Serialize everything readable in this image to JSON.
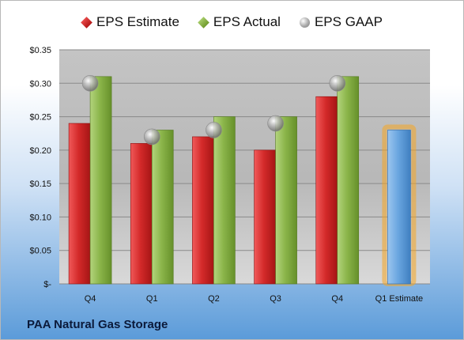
{
  "company_name": "PAA Natural Gas Storage",
  "legend": [
    {
      "key": "estimate",
      "label": "EPS Estimate"
    },
    {
      "key": "actual",
      "label": "EPS Actual"
    },
    {
      "key": "gaap",
      "label": "EPS GAAP"
    }
  ],
  "colors": {
    "estimate": "#d42a2a",
    "actual": "#8bb54a",
    "gaap": "#a9a9a9",
    "forecast": "#6aa6e0",
    "forecast_glow": "#f5a623",
    "plot_background": "#c0c0c0"
  },
  "chart_data": {
    "type": "bar",
    "categories": [
      "Q4",
      "Q1",
      "Q2",
      "Q3",
      "Q4",
      "Q1 Estimate"
    ],
    "series": [
      {
        "name": "EPS Estimate",
        "values": [
          0.24,
          0.21,
          0.22,
          0.2,
          0.28,
          null
        ]
      },
      {
        "name": "EPS Actual",
        "values": [
          0.31,
          0.23,
          0.25,
          0.25,
          0.31,
          null
        ]
      },
      {
        "name": "EPS GAAP",
        "type": "scatter",
        "values": [
          0.3,
          0.22,
          0.23,
          0.24,
          0.3,
          null
        ]
      }
    ],
    "forecast": {
      "category": "Q1 Estimate",
      "value": 0.23
    },
    "ylim": [
      0,
      0.35
    ],
    "yticks": [
      0,
      0.05,
      0.1,
      0.15,
      0.2,
      0.25,
      0.3,
      0.35
    ],
    "ytick_labels": [
      "$-",
      "$0.05",
      "$0.10",
      "$0.15",
      "$0.20",
      "$0.25",
      "$0.30",
      "$0.35"
    ],
    "grid": true,
    "legend_position": "top"
  }
}
